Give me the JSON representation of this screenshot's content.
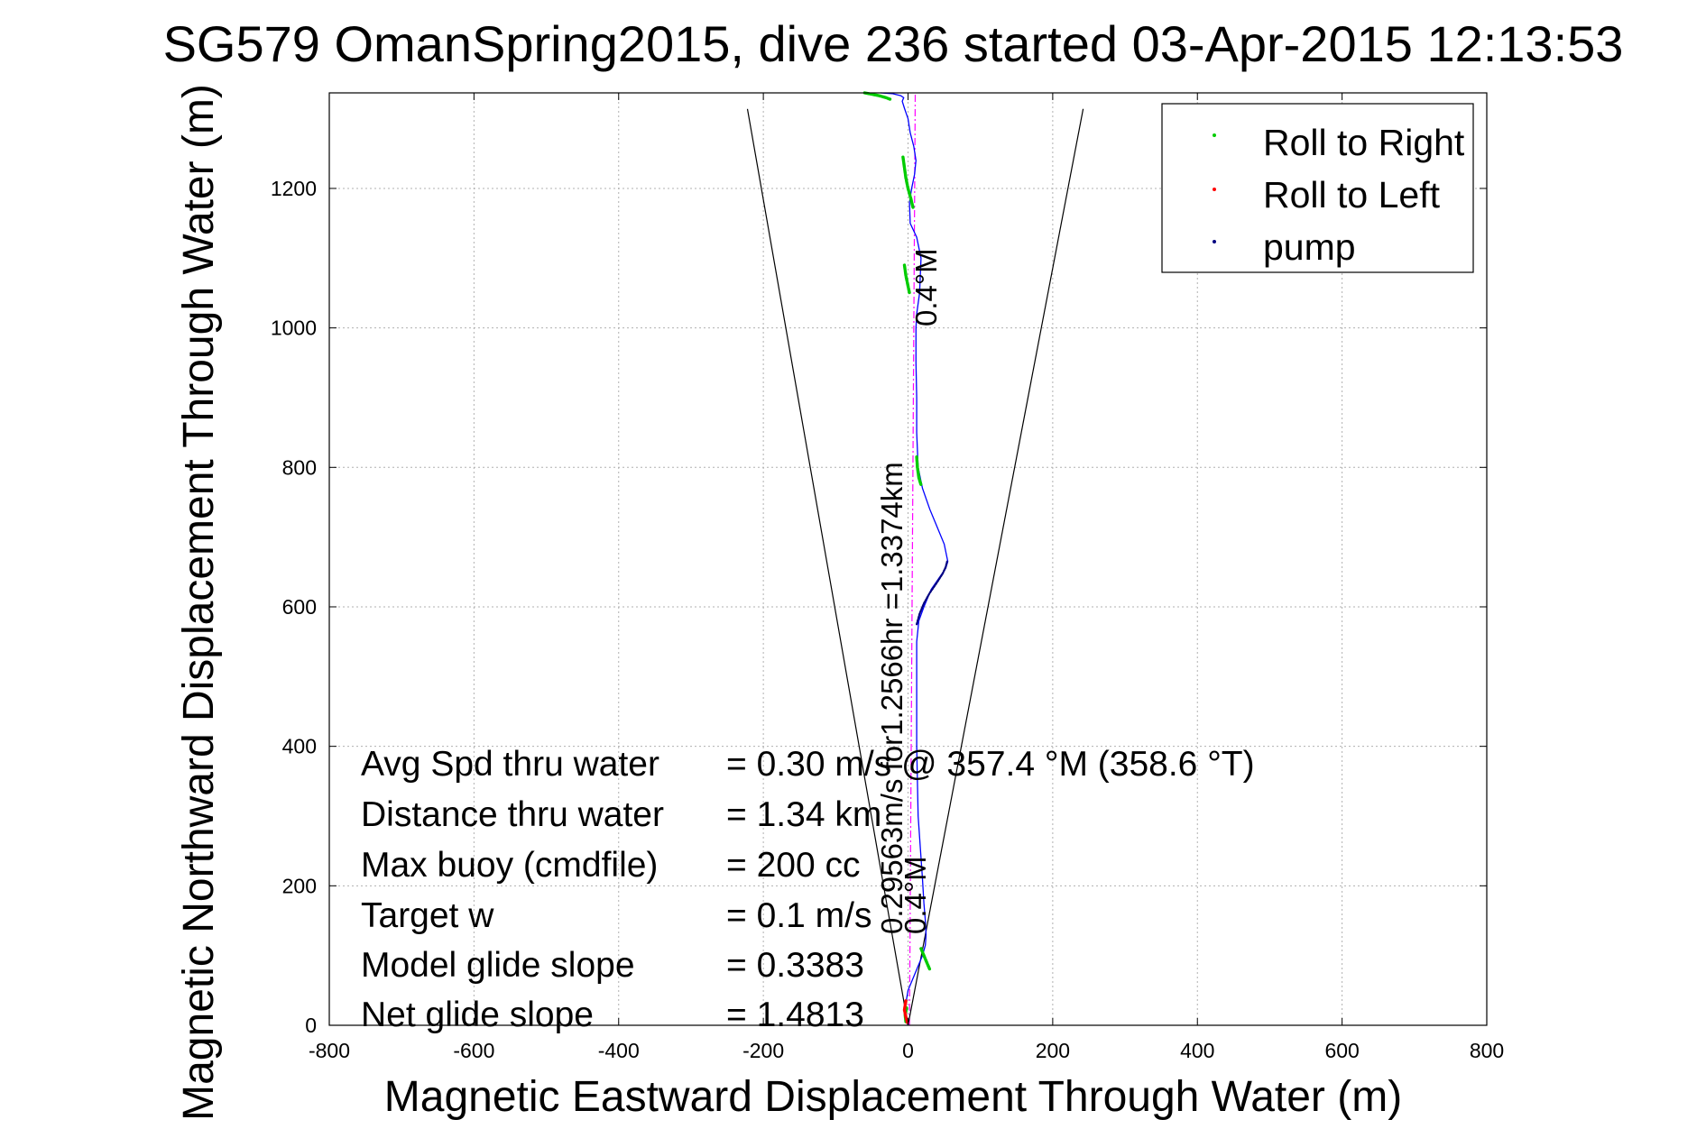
{
  "chart_data": {
    "type": "line",
    "title": "SG579 OmanSpring2015, dive 236 started 03-Apr-2015 12:13:53",
    "xlabel": "Magnetic Eastward Displacement Through Water (m)",
    "ylabel": "Magnetic Northward Displacement Through Water (m)",
    "xlim": [
      -800,
      800
    ],
    "ylim": [
      0,
      1337
    ],
    "xticks": [
      -800,
      -600,
      -400,
      -200,
      0,
      200,
      400,
      600,
      800
    ],
    "xtick_labels": [
      "-800",
      "-600",
      "-400",
      "-200",
      "0",
      "200",
      "400",
      "600",
      "800"
    ],
    "yticks": [
      0,
      200,
      400,
      600,
      800,
      1000,
      1200
    ],
    "ytick_labels": [
      "0",
      "200",
      "400",
      "600",
      "800",
      "1000",
      "1200"
    ],
    "grid": true,
    "legend_position": "top-right",
    "legend": [
      {
        "label": "Roll to Right",
        "color": "#00cc00"
      },
      {
        "label": "Roll to Left",
        "color": "#ff0000"
      },
      {
        "label": "pump",
        "color": "#000080"
      }
    ],
    "series": [
      {
        "name": "track",
        "color": "#0000ff",
        "x": [
          0,
          -5,
          0,
          12,
          20,
          24,
          25,
          24,
          22,
          20,
          14,
          12,
          12,
          12,
          15,
          22,
          32,
          42,
          52,
          55,
          50,
          40,
          30,
          20,
          14,
          12,
          12,
          11,
          11,
          12,
          16,
          18,
          12,
          3,
          2,
          5,
          9,
          11,
          8,
          3,
          0,
          -5,
          -8,
          -6,
          -10,
          -22,
          -38
        ],
        "y": [
          0,
          20,
          50,
          80,
          100,
          115,
          130,
          150,
          175,
          210,
          300,
          400,
          500,
          550,
          580,
          600,
          625,
          640,
          655,
          665,
          690,
          715,
          740,
          770,
          800,
          850,
          900,
          950,
          1000,
          1020,
          1050,
          1100,
          1130,
          1150,
          1180,
          1200,
          1220,
          1240,
          1260,
          1280,
          1300,
          1315,
          1325,
          1330,
          1333,
          1336,
          1337
        ]
      },
      {
        "name": "Roll to Right",
        "color": "#00cc00",
        "segments": [
          {
            "x": [
              -60,
              -50,
              -40,
              -30,
              -25
            ],
            "y": [
              1337,
              1335,
              1333,
              1330,
              1328
            ]
          },
          {
            "x": [
              -7,
              -5,
              -3,
              0,
              4,
              7
            ],
            "y": [
              1245,
              1230,
              1215,
              1200,
              1185,
              1172
            ]
          },
          {
            "x": [
              -5,
              -3,
              0,
              2
            ],
            "y": [
              1090,
              1075,
              1060,
              1050
            ]
          },
          {
            "x": [
              12,
              13,
              15,
              18
            ],
            "y": [
              815,
              800,
              785,
              775
            ]
          },
          {
            "x": [
              18,
              22,
              26,
              30
            ],
            "y": [
              110,
              100,
              90,
              80
            ]
          },
          {
            "x": [
              -2,
              -4,
              -3
            ],
            "y": [
              25,
              15,
              5
            ]
          }
        ]
      },
      {
        "name": "Roll to Left",
        "color": "#ff0000",
        "segments": [
          {
            "x": [
              -3,
              -5,
              -3,
              -1
            ],
            "y": [
              35,
              22,
              12,
              4
            ]
          }
        ]
      },
      {
        "name": "pump",
        "color": "#000080",
        "segments": [
          {
            "x": [
              12,
              16,
              22,
              30,
              40,
              48,
              52,
              54
            ],
            "y": [
              575,
              590,
              605,
              620,
              635,
              648,
              657,
              665
            ]
          }
        ]
      }
    ],
    "reference_lines": [
      {
        "color": "#ff00ff",
        "style": "dash-dot",
        "x": [
          2,
          10
        ],
        "y": [
          0,
          1337
        ]
      },
      {
        "color": "#000000",
        "x": [
          0,
          -222
        ],
        "y": [
          0,
          1314
        ]
      },
      {
        "color": "#000000",
        "x": [
          0,
          242
        ],
        "y": [
          0,
          1314
        ]
      }
    ],
    "annotations": [
      {
        "text": "0.4°M"
      },
      {
        "text": "0.29563m/s for1.2566hr =1.3374km"
      },
      {
        "text": "0.4°M"
      }
    ],
    "stats": [
      {
        "label": "Avg Spd thru water",
        "value": "=  0.30 m/s @ 357.4 °M (358.6 °T)"
      },
      {
        "label": "Distance thru water",
        "value": "=  1.34 km"
      },
      {
        "label": "Max buoy (cmdfile)",
        "value": "= 200 cc"
      },
      {
        "label": "Target w",
        "value": "= 0.1 m/s"
      },
      {
        "label": "Model glide slope",
        "value": "= 0.3383"
      },
      {
        "label": "Net glide slope",
        "value": "= 1.4813"
      }
    ]
  }
}
